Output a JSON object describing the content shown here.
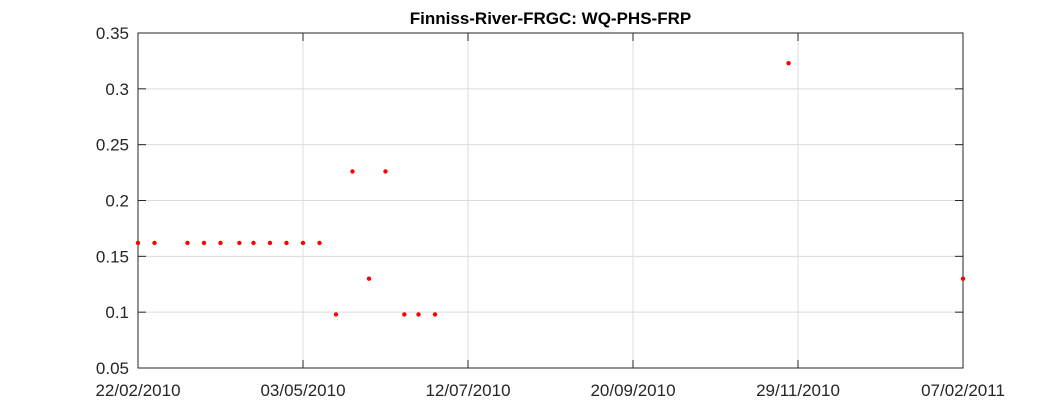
{
  "chart_data": {
    "type": "scatter",
    "title": "Finniss-River-FRGC: WQ-PHS-FRP",
    "xlabel": "",
    "ylabel": "",
    "x_type": "date",
    "xlim": [
      "2010-02-22",
      "2011-02-07"
    ],
    "ylim": [
      0.05,
      0.35
    ],
    "x_ticks": [
      {
        "value": "2010-02-22",
        "label": "22/02/2010"
      },
      {
        "value": "2010-05-03",
        "label": "03/05/2010"
      },
      {
        "value": "2010-07-12",
        "label": "12/07/2010"
      },
      {
        "value": "2010-09-20",
        "label": "20/09/2010"
      },
      {
        "value": "2010-11-29",
        "label": "29/11/2010"
      },
      {
        "value": "2011-02-07",
        "label": "07/02/2011"
      }
    ],
    "y_ticks": [
      {
        "value": 0.05,
        "label": "0.05"
      },
      {
        "value": 0.1,
        "label": "0.1"
      },
      {
        "value": 0.15,
        "label": "0.15"
      },
      {
        "value": 0.2,
        "label": "0.2"
      },
      {
        "value": 0.25,
        "label": "0.25"
      },
      {
        "value": 0.3,
        "label": "0.3"
      },
      {
        "value": 0.35,
        "label": "0.35"
      }
    ],
    "grid": true,
    "marker_color": "#ff0000",
    "points": [
      {
        "x": "2010-02-22",
        "y": 0.162
      },
      {
        "x": "2010-03-01",
        "y": 0.162
      },
      {
        "x": "2010-03-15",
        "y": 0.162
      },
      {
        "x": "2010-03-22",
        "y": 0.162
      },
      {
        "x": "2010-03-29",
        "y": 0.162
      },
      {
        "x": "2010-04-06",
        "y": 0.162
      },
      {
        "x": "2010-04-12",
        "y": 0.162
      },
      {
        "x": "2010-04-19",
        "y": 0.162
      },
      {
        "x": "2010-04-26",
        "y": 0.162
      },
      {
        "x": "2010-05-03",
        "y": 0.162
      },
      {
        "x": "2010-05-10",
        "y": 0.162
      },
      {
        "x": "2010-05-17",
        "y": 0.098
      },
      {
        "x": "2010-05-24",
        "y": 0.226
      },
      {
        "x": "2010-05-31",
        "y": 0.13
      },
      {
        "x": "2010-06-07",
        "y": 0.226
      },
      {
        "x": "2010-06-15",
        "y": 0.098
      },
      {
        "x": "2010-06-21",
        "y": 0.098
      },
      {
        "x": "2010-06-28",
        "y": 0.098
      },
      {
        "x": "2010-11-25",
        "y": 0.323
      },
      {
        "x": "2011-02-07",
        "y": 0.13
      }
    ]
  }
}
